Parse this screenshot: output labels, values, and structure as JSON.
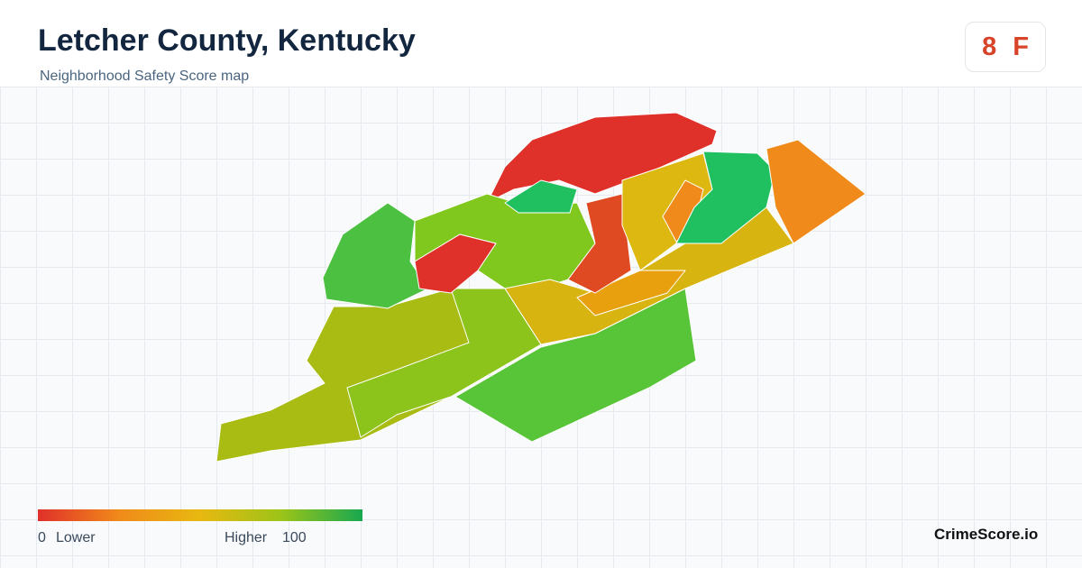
{
  "header": {
    "title": "Letcher County, Kentucky",
    "subtitle": "Neighborhood Safety Score map"
  },
  "score": {
    "value": 8,
    "grade": "F"
  },
  "legend": {
    "min": 0,
    "min_label": "Lower",
    "max_label": "Higher",
    "max": 100
  },
  "brand": "CrimeScore.io"
}
